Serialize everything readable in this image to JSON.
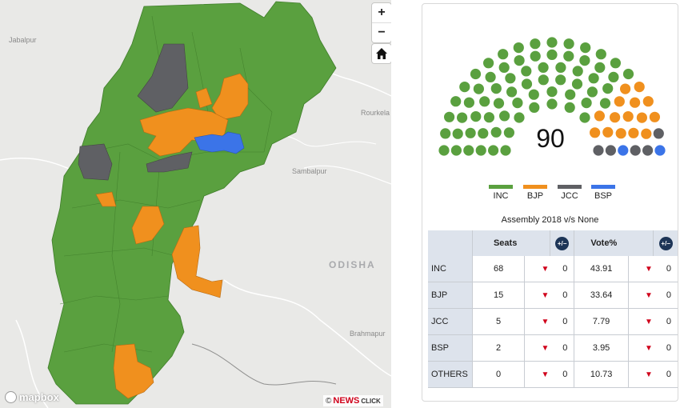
{
  "map": {
    "cities": [
      "Jabalpur",
      "Rourkela",
      "Sambalpur",
      "Brahmapur"
    ],
    "region": "ODISHA",
    "zoom_in": "+",
    "zoom_out": "−",
    "home_icon": "home-icon",
    "mapbox_logo": "mapbox",
    "credit_copy": "©",
    "credit_news": "NEWS",
    "credit_click": "CLICK"
  },
  "colors": {
    "INC": "#5aa03f",
    "BJP": "#f0901e",
    "JCC": "#5f6064",
    "BSP": "#3b74e8",
    "header": "#dde3ec"
  },
  "seats": {
    "total": "90",
    "legend": [
      "INC",
      "BJP",
      "JCC",
      "BSP"
    ],
    "composition": {
      "INC": 68,
      "BJP": 15,
      "JCC": 5,
      "BSP": 2
    }
  },
  "table": {
    "title": "Assembly 2018 v/s None",
    "headers": {
      "seats": "Seats",
      "vote": "Vote%",
      "change_icon": "+/−"
    },
    "rows": [
      {
        "party": "INC",
        "seats": "68",
        "seats_change": "0",
        "vote": "43.91",
        "vote_change": "0"
      },
      {
        "party": "BJP",
        "seats": "15",
        "seats_change": "0",
        "vote": "33.64",
        "vote_change": "0"
      },
      {
        "party": "JCC",
        "seats": "5",
        "seats_change": "0",
        "vote": "7.79",
        "vote_change": "0"
      },
      {
        "party": "BSP",
        "seats": "2",
        "seats_change": "0",
        "vote": "3.95",
        "vote_change": "0"
      },
      {
        "party": "OTHERS",
        "seats": "0",
        "seats_change": "0",
        "vote": "10.73",
        "vote_change": "0"
      }
    ]
  }
}
